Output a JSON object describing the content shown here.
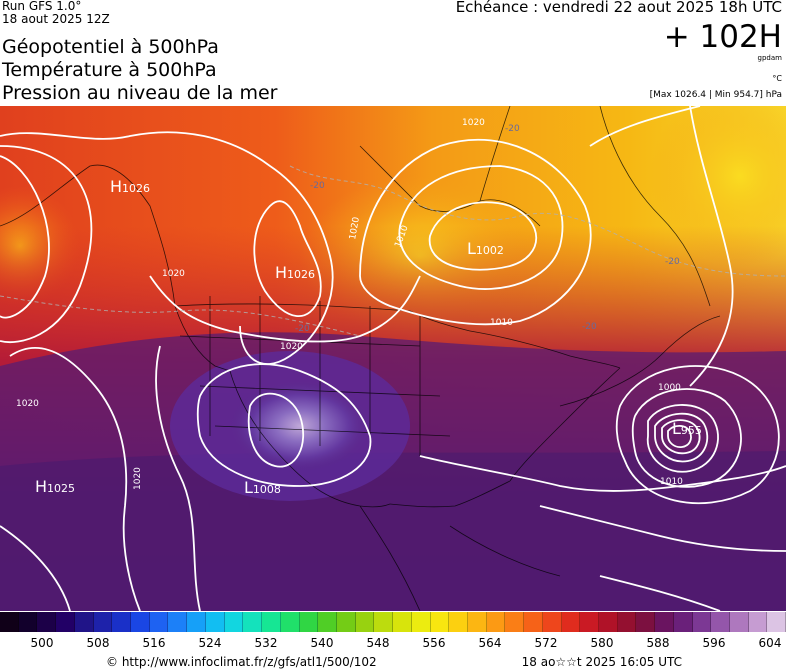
{
  "header": {
    "run": "Run GFS 1.0°",
    "run_date": "18 aout 2025 12Z",
    "title_lines": [
      "Géopotentiel à 500hPa",
      "Température à 500hPa",
      "Pression au niveau de la mer"
    ],
    "echeance": "Echéance : vendredi 22 aout 2025 18h UTC",
    "lead": "+ 102H",
    "unit_gpdam": "gpdam",
    "unit_temp": "°C",
    "max_min": "[Max 1026.4 | Min 954.7] hPa"
  },
  "map": {
    "pressure_centers": [
      {
        "type": "H",
        "value": "1026",
        "label": "H1026 (Alaska)"
      },
      {
        "type": "H",
        "value": "1026",
        "label": "H1026 (Pacific NW)"
      },
      {
        "type": "L",
        "value": "1002",
        "label": "L1002 (Hudson)"
      },
      {
        "type": "L",
        "value": "955",
        "label": "L955 (Atlantic)"
      },
      {
        "type": "L",
        "value": "1008",
        "label": "L1008 (Southwest)"
      },
      {
        "type": "H",
        "value": "1025",
        "label": "H1025 (Pacific)"
      }
    ],
    "isobar_labels": [
      "1020",
      "1020",
      "1020",
      "1020",
      "1020",
      "1010",
      "1010",
      "1000",
      "1010",
      "1020",
      "1020"
    ],
    "temp_labels": [
      "-20",
      "-20",
      "-20",
      "-20",
      "-20",
      "-10"
    ]
  },
  "colorbar": {
    "colors": [
      "#100018",
      "#12002c",
      "#1c0048",
      "#220066",
      "#201488",
      "#1e22aa",
      "#1a30c8",
      "#1a46e4",
      "#1e62f2",
      "#1c80f8",
      "#16a0f8",
      "#12bef2",
      "#12d6e0",
      "#14e2bc",
      "#16e694",
      "#20e06a",
      "#30d644",
      "#50ce26",
      "#74cc16",
      "#98d210",
      "#bcdc0e",
      "#d8e40c",
      "#ecec10",
      "#f8e610",
      "#fcd010",
      "#fcb612",
      "#fc9a14",
      "#fa7e16",
      "#f66218",
      "#ee461c",
      "#e02c1e",
      "#ca1a24",
      "#b01228",
      "#941030",
      "#7c1040",
      "#6a1460",
      "#6a207a",
      "#7c3894",
      "#9456aa",
      "#ae78be",
      "#c69cd2",
      "#dcc4e4"
    ],
    "ticks": [
      "500",
      "508",
      "516",
      "524",
      "532",
      "540",
      "548",
      "556",
      "564",
      "572",
      "580",
      "588",
      "596",
      "604"
    ]
  },
  "footer": {
    "url": "© http://www.infoclimat.fr/z/gfs/atl1/500/102",
    "timestamp": "18 ao☆☆t 2025 16:05 UTC"
  }
}
